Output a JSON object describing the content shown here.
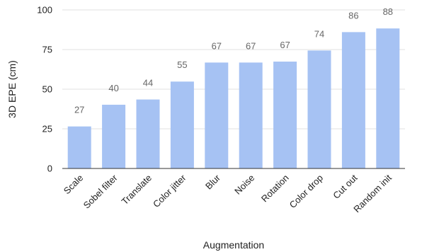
{
  "chart_data": {
    "type": "bar",
    "title": "",
    "xlabel": "Augmentation",
    "ylabel": "3D EPE (cm)",
    "categories": [
      "Scale",
      "Sobel filter",
      "Translate",
      "Color jitter",
      "Blur",
      "Noise",
      "Rotation",
      "Color drop",
      "Cut out",
      "Random init"
    ],
    "values": [
      26.5,
      40.2,
      43.5,
      54.8,
      66.8,
      66.8,
      67.4,
      74.4,
      86.0,
      88.3
    ],
    "data_labels": [
      "27",
      "40",
      "44",
      "55",
      "67",
      "67",
      "67",
      "74",
      "86",
      "88"
    ],
    "ylim": [
      0,
      100
    ],
    "yticks": [
      0,
      25,
      50,
      75,
      100
    ],
    "grid": true,
    "legend": "none",
    "bar_color": "#a6c2f3",
    "axis_color": "#333333",
    "grid_color": "#e0e0e0"
  }
}
